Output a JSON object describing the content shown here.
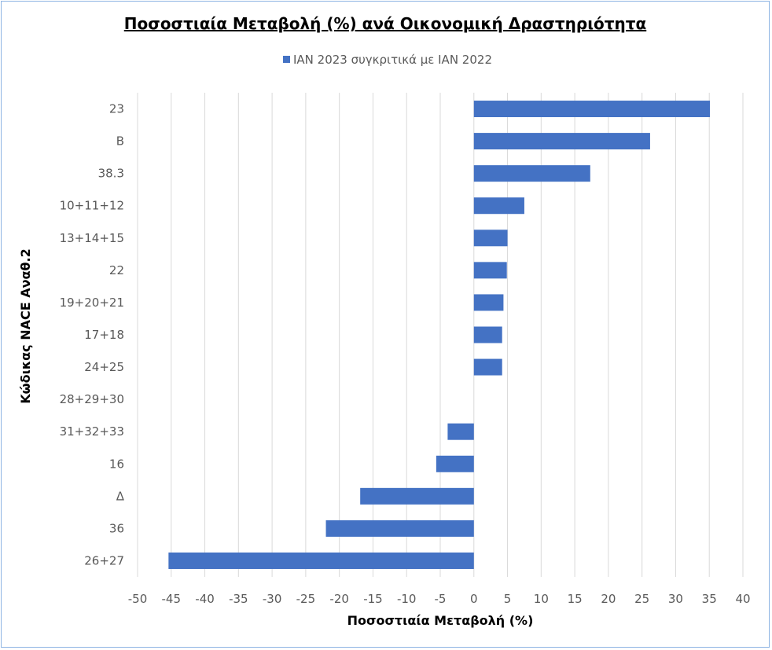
{
  "chart_data": {
    "type": "bar",
    "orientation": "horizontal",
    "title": "Ποσοστιαία Μεταβολή (%) ανά Οικονομική Δραστηριότητα",
    "xlabel": "Ποσοστιαία Μεταβολή (%)",
    "ylabel": "Κώδικας NACE Αναθ.2",
    "xlim": [
      -50,
      40
    ],
    "x_ticks": [
      "-50",
      "-45",
      "-40",
      "-35",
      "-30",
      "-25",
      "-20",
      "-15",
      "-10",
      "-5",
      "0",
      "5",
      "10",
      "15",
      "20",
      "25",
      "30",
      "35",
      "40"
    ],
    "grid": "vertical",
    "legend_position": "top",
    "categories": [
      "23",
      "B",
      "38.3",
      "10+11+12",
      "13+14+15",
      "22",
      "19+20+21",
      "17+18",
      "24+25",
      "28+29+30",
      "31+32+33",
      "16",
      "Δ",
      "36",
      "26+27"
    ],
    "series": [
      {
        "name": "ΙΑΝ 2023 συγκριτικά με ΙΑΝ 2022",
        "color": "#4472c4",
        "values": [
          35.1,
          26.2,
          17.3,
          7.5,
          5.0,
          4.9,
          4.4,
          4.2,
          4.2,
          0,
          -3.9,
          -5.6,
          -16.9,
          -22.0,
          -45.4
        ]
      }
    ]
  }
}
